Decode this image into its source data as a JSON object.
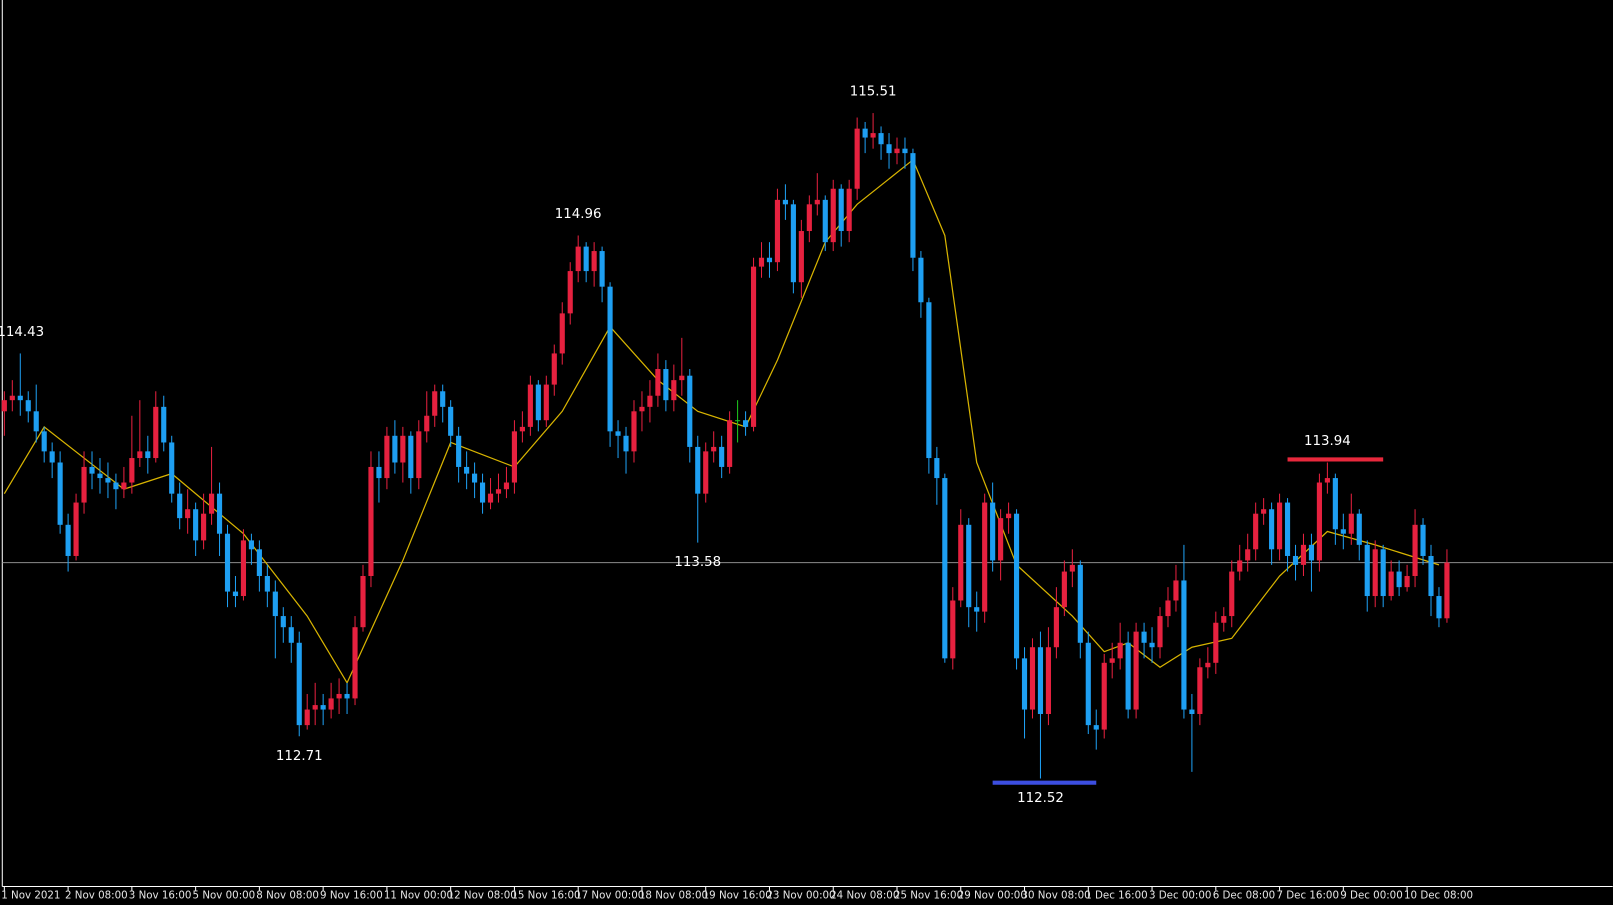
{
  "chart_data": {
    "type": "candlestick",
    "open": [
      114.17,
      114.22,
      114.24,
      114.22,
      114.17,
      114.08,
      113.99,
      113.94,
      113.66,
      113.52,
      113.76,
      113.92,
      113.89,
      113.87,
      113.85,
      113.82,
      113.85,
      113.96,
      113.99,
      113.96,
      114.19,
      114.03,
      113.8,
      113.69,
      113.73,
      113.59,
      113.71,
      113.8,
      113.62,
      113.36,
      113.34,
      113.59,
      113.55,
      113.43,
      113.36,
      113.25,
      113.2,
      113.13,
      112.76,
      112.83,
      112.85,
      112.83,
      112.88,
      112.9,
      112.88,
      113.2,
      113.43,
      113.92,
      113.87,
      114.06,
      113.94,
      114.06,
      113.87,
      114.08,
      114.15,
      114.26,
      114.19,
      114.06,
      113.92,
      113.89,
      113.85,
      113.76,
      113.8,
      113.82,
      113.85,
      114.08,
      114.1,
      114.29,
      114.13,
      114.29,
      114.43,
      114.61,
      114.8,
      114.91,
      114.8,
      114.89,
      114.73,
      114.08,
      114.06,
      113.99,
      114.17,
      114.19,
      114.24,
      114.36,
      114.22,
      114.31,
      114.33,
      114.01,
      113.8,
      113.99,
      114.01,
      113.92,
      114.13,
      114.13,
      114.1,
      114.82,
      114.86,
      114.84,
      115.12,
      115.1,
      114.75,
      114.98,
      115.1,
      115.12,
      114.93,
      115.17,
      114.98,
      115.17,
      115.44,
      115.4,
      115.42,
      115.37,
      115.33,
      115.35,
      115.33,
      114.86,
      114.66,
      113.96,
      113.87,
      113.06,
      113.32,
      113.66,
      113.29,
      113.27,
      113.76,
      113.5,
      113.69,
      113.71,
      113.06,
      112.83,
      113.11,
      112.81,
      113.11,
      113.29,
      113.45,
      113.48,
      113.13,
      112.76,
      112.74,
      113.04,
      113.06,
      113.13,
      112.83,
      113.18,
      113.13,
      113.11,
      113.25,
      113.32,
      113.41,
      112.83,
      112.81,
      113.02,
      113.04,
      113.22,
      113.25,
      113.45,
      113.5,
      113.55,
      113.71,
      113.73,
      113.55,
      113.76,
      113.52,
      113.48,
      113.57,
      113.5,
      113.85,
      113.87,
      113.64,
      113.62,
      113.71,
      113.57,
      113.34,
      113.55,
      113.34,
      113.45,
      113.38,
      113.43,
      113.66,
      113.52,
      113.34,
      113.24
    ],
    "high": [
      114.26,
      114.31,
      114.43,
      114.26,
      114.29,
      114.1,
      114.03,
      113.99,
      113.71,
      113.8,
      113.99,
      113.99,
      113.96,
      113.94,
      113.89,
      113.92,
      114.15,
      114.22,
      114.06,
      114.26,
      114.24,
      114.06,
      113.85,
      113.82,
      113.76,
      113.8,
      114.01,
      113.85,
      113.66,
      113.43,
      113.64,
      113.62,
      113.59,
      113.48,
      113.41,
      113.29,
      113.25,
      113.18,
      112.9,
      112.95,
      112.9,
      112.95,
      112.97,
      112.95,
      113.25,
      113.48,
      113.99,
      113.99,
      114.1,
      114.13,
      114.1,
      114.08,
      114.13,
      114.26,
      114.29,
      114.29,
      114.22,
      114.1,
      113.99,
      113.94,
      113.89,
      113.87,
      113.89,
      113.92,
      114.13,
      114.17,
      114.33,
      114.31,
      114.33,
      114.47,
      114.66,
      114.84,
      114.96,
      114.93,
      114.93,
      114.91,
      114.75,
      114.13,
      114.1,
      114.22,
      114.26,
      114.31,
      114.43,
      114.4,
      114.38,
      114.5,
      114.36,
      114.06,
      114.03,
      114.08,
      114.06,
      114.17,
      114.22,
      114.17,
      114.86,
      114.93,
      114.93,
      115.17,
      115.19,
      115.12,
      115.03,
      115.14,
      115.24,
      115.14,
      115.21,
      115.19,
      115.21,
      115.49,
      115.47,
      115.51,
      115.45,
      115.42,
      115.4,
      115.4,
      115.35,
      114.89,
      114.68,
      114.01,
      113.89,
      113.38,
      113.73,
      113.69,
      113.36,
      113.8,
      113.85,
      113.73,
      113.76,
      113.73,
      113.11,
      113.15,
      113.18,
      113.2,
      113.38,
      113.5,
      113.55,
      113.5,
      113.18,
      112.83,
      113.08,
      113.13,
      113.22,
      113.18,
      113.22,
      113.22,
      113.2,
      113.29,
      113.38,
      113.48,
      113.57,
      112.9,
      113.06,
      113.11,
      113.27,
      113.29,
      113.5,
      113.57,
      113.62,
      113.76,
      113.78,
      113.76,
      113.8,
      113.78,
      113.57,
      113.62,
      113.62,
      113.89,
      113.94,
      113.89,
      113.71,
      113.8,
      113.73,
      113.59,
      113.59,
      113.57,
      113.5,
      113.5,
      113.48,
      113.73,
      113.69,
      113.57,
      113.38,
      113.55
    ],
    "low": [
      114.06,
      114.17,
      114.15,
      114.12,
      114.03,
      113.94,
      113.87,
      113.62,
      113.45,
      113.5,
      113.71,
      113.82,
      113.8,
      113.78,
      113.73,
      113.78,
      113.8,
      113.92,
      113.89,
      113.94,
      113.99,
      113.76,
      113.64,
      113.62,
      113.52,
      113.55,
      113.66,
      113.52,
      113.29,
      113.29,
      113.32,
      113.48,
      113.36,
      113.29,
      113.06,
      113.13,
      113.04,
      112.71,
      112.74,
      112.76,
      112.76,
      112.79,
      112.81,
      112.81,
      112.85,
      113.18,
      113.38,
      113.76,
      113.82,
      113.89,
      113.85,
      113.8,
      113.82,
      114.03,
      114.1,
      114.12,
      114.01,
      113.85,
      113.82,
      113.78,
      113.71,
      113.73,
      113.76,
      113.78,
      113.8,
      114.03,
      114.06,
      114.08,
      114.1,
      114.24,
      114.38,
      114.56,
      114.75,
      114.75,
      114.73,
      114.66,
      114.01,
      113.96,
      113.89,
      113.94,
      114.08,
      114.12,
      114.19,
      114.17,
      114.17,
      114.24,
      113.94,
      113.58,
      113.76,
      113.94,
      113.87,
      113.89,
      114.03,
      114.06,
      114.08,
      114.77,
      114.77,
      114.8,
      115.03,
      114.7,
      114.68,
      114.93,
      115.05,
      114.89,
      114.89,
      114.91,
      114.93,
      115.12,
      115.33,
      115.35,
      115.3,
      115.26,
      115.28,
      115.26,
      114.8,
      114.59,
      113.89,
      113.75,
      113.04,
      113.01,
      113.29,
      113.2,
      113.18,
      113.22,
      113.45,
      113.41,
      113.62,
      113.01,
      112.7,
      112.79,
      112.52,
      112.76,
      113.06,
      113.25,
      113.38,
      113.06,
      112.72,
      112.65,
      112.7,
      112.97,
      113.01,
      112.79,
      112.79,
      113.06,
      113.04,
      113.06,
      113.2,
      113.27,
      112.79,
      112.55,
      112.76,
      112.97,
      112.99,
      113.18,
      113.2,
      113.41,
      113.45,
      113.5,
      113.66,
      113.48,
      113.5,
      113.45,
      113.41,
      113.43,
      113.36,
      113.45,
      113.8,
      113.57,
      113.55,
      113.57,
      113.5,
      113.27,
      113.29,
      113.29,
      113.32,
      113.34,
      113.36,
      113.38,
      113.48,
      113.25,
      113.2,
      113.22
    ],
    "close": [
      114.22,
      114.24,
      114.22,
      114.17,
      114.08,
      113.99,
      113.94,
      113.66,
      113.52,
      113.76,
      113.92,
      113.89,
      113.87,
      113.85,
      113.82,
      113.85,
      113.96,
      113.99,
      113.96,
      114.19,
      114.03,
      113.8,
      113.69,
      113.73,
      113.59,
      113.71,
      113.8,
      113.62,
      113.36,
      113.34,
      113.59,
      113.55,
      113.43,
      113.36,
      113.25,
      113.2,
      113.13,
      112.76,
      112.83,
      112.85,
      112.83,
      112.88,
      112.9,
      112.88,
      113.2,
      113.43,
      113.92,
      113.87,
      114.06,
      113.94,
      114.06,
      113.87,
      114.08,
      114.15,
      114.26,
      114.19,
      114.06,
      113.92,
      113.89,
      113.85,
      113.76,
      113.8,
      113.82,
      113.85,
      114.08,
      114.1,
      114.29,
      114.13,
      114.29,
      114.43,
      114.61,
      114.8,
      114.91,
      114.8,
      114.89,
      114.73,
      114.08,
      114.06,
      113.99,
      114.17,
      114.19,
      114.24,
      114.36,
      114.22,
      114.31,
      114.33,
      114.01,
      113.8,
      113.99,
      114.01,
      113.92,
      114.13,
      114.13,
      114.1,
      114.82,
      114.86,
      114.84,
      115.12,
      115.1,
      114.75,
      114.98,
      115.1,
      115.12,
      114.93,
      115.17,
      114.98,
      115.17,
      115.44,
      115.4,
      115.42,
      115.37,
      115.33,
      115.35,
      115.33,
      114.86,
      114.66,
      113.96,
      113.87,
      113.06,
      113.32,
      113.66,
      113.29,
      113.27,
      113.76,
      113.5,
      113.69,
      113.71,
      113.06,
      112.83,
      113.11,
      112.81,
      113.11,
      113.29,
      113.45,
      113.48,
      113.13,
      112.76,
      112.74,
      113.04,
      113.06,
      113.13,
      112.83,
      113.18,
      113.13,
      113.11,
      113.25,
      113.32,
      113.41,
      112.83,
      112.81,
      113.02,
      113.04,
      113.22,
      113.25,
      113.45,
      113.5,
      113.55,
      113.71,
      113.73,
      113.55,
      113.76,
      113.52,
      113.48,
      113.57,
      113.5,
      113.85,
      113.87,
      113.64,
      113.62,
      113.71,
      113.57,
      113.34,
      113.55,
      113.34,
      113.45,
      113.38,
      113.43,
      113.66,
      113.52,
      113.34,
      113.24,
      113.49
    ],
    "up_color": "#e6213f",
    "down_color": "#1e9ff2",
    "doji_color": "#1ec81e",
    "ylim": [
      112.035,
      116.018
    ],
    "xticks": [
      {
        "value": 0,
        "label": "1 Nov 2021"
      },
      {
        "value": 8,
        "label": "2 Nov 08:00"
      },
      {
        "value": 16,
        "label": "3 Nov 16:00"
      },
      {
        "value": 24,
        "label": "5 Nov 00:00"
      },
      {
        "value": 32,
        "label": "8 Nov 08:00"
      },
      {
        "value": 40,
        "label": "9 Nov 16:00"
      },
      {
        "value": 48,
        "label": "11 Nov 00:00"
      },
      {
        "value": 56,
        "label": "12 Nov 08:00"
      },
      {
        "value": 64,
        "label": "15 Nov 16:00"
      },
      {
        "value": 72,
        "label": "17 Nov 00:00"
      },
      {
        "value": 80,
        "label": "18 Nov 08:00"
      },
      {
        "value": 88,
        "label": "19 Nov 16:00"
      },
      {
        "value": 96,
        "label": "23 Nov 00:00"
      },
      {
        "value": 104,
        "label": "24 Nov 08:00"
      },
      {
        "value": 112,
        "label": "25 Nov 16:00"
      },
      {
        "value": 120,
        "label": "29 Nov 00:00"
      },
      {
        "value": 128,
        "label": "30 Nov 08:00"
      },
      {
        "value": 136,
        "label": "1 Dec 16:00"
      },
      {
        "value": 144,
        "label": "3 Dec 00:00"
      },
      {
        "value": 152,
        "label": "6 Dec 08:00"
      },
      {
        "value": 160,
        "label": "7 Dec 16:00"
      },
      {
        "value": 168,
        "label": "9 Dec 00:00"
      },
      {
        "value": 176,
        "label": "10 Dec 08:00"
      }
    ],
    "moving_average": {
      "color": "#d8b400",
      "x": [
        0,
        5,
        15,
        21,
        30,
        38,
        43,
        50,
        56,
        64,
        70,
        76,
        82,
        87,
        93,
        97,
        103,
        107,
        114,
        118,
        122,
        127,
        134,
        138,
        141,
        145,
        149,
        154,
        160,
        166,
        172,
        180
      ],
      "values": [
        113.8,
        114.1,
        113.82,
        113.89,
        113.62,
        113.25,
        112.95,
        113.5,
        114.03,
        113.92,
        114.17,
        114.55,
        114.31,
        114.17,
        114.1,
        114.4,
        114.93,
        115.1,
        115.3,
        114.96,
        113.94,
        113.48,
        113.25,
        113.09,
        113.13,
        113.02,
        113.11,
        113.15,
        113.43,
        113.63,
        113.57,
        113.48
      ]
    },
    "price_line": {
      "value": 113.49,
      "color": "#8c8c8c"
    },
    "annotations": [
      {
        "label": "114.43",
        "index": 2,
        "side": "high"
      },
      {
        "label": "112.71",
        "index": 37,
        "side": "low"
      },
      {
        "label": "114.96",
        "index": 72,
        "side": "high"
      },
      {
        "label": "113.58",
        "index": 87,
        "side": "low"
      },
      {
        "label": "115.51",
        "index": 109,
        "side": "high"
      },
      {
        "label": "112.52",
        "index": 130,
        "side": "low"
      },
      {
        "label": "113.94",
        "index": 166,
        "side": "high"
      }
    ],
    "levels": [
      {
        "value": 113.94,
        "color": "#e8283c",
        "from": 161,
        "to": 173
      },
      {
        "value": 112.52,
        "color": "#3c4ee0",
        "from": 124,
        "to": 137
      }
    ]
  }
}
